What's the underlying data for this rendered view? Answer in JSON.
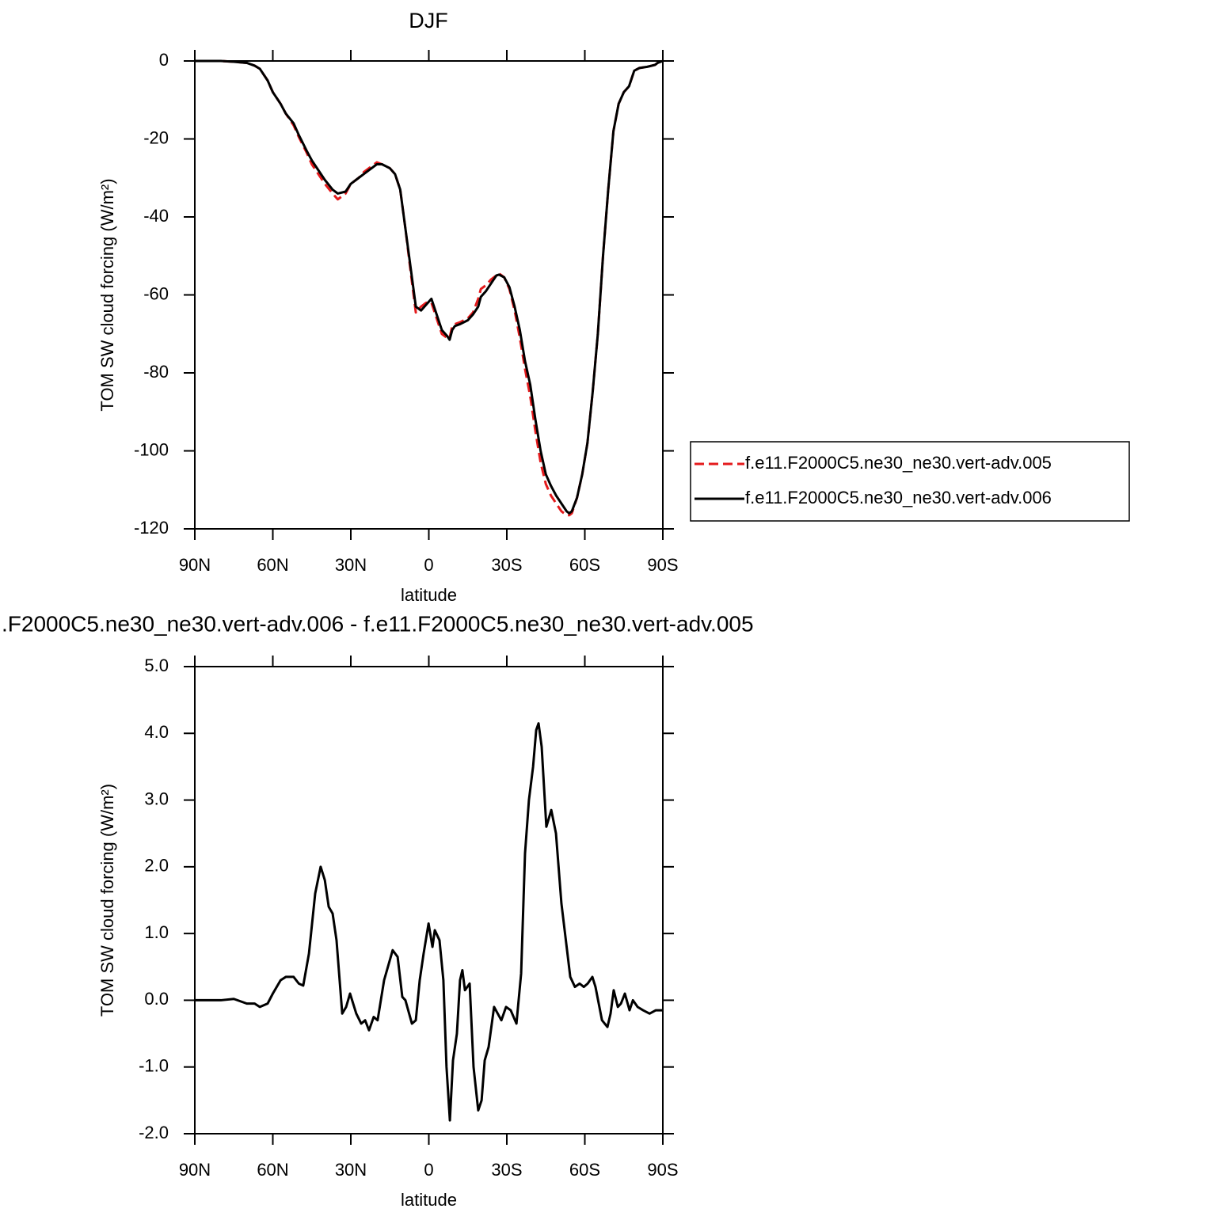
{
  "chart_data": [
    {
      "type": "line",
      "title": "DJF",
      "xlabel": "latitude",
      "ylabel": "TOM SW cloud forcing (W/m²)",
      "x": [
        90,
        80,
        75,
        70,
        67,
        65,
        62,
        60,
        57,
        55,
        52,
        50,
        47,
        45,
        42,
        40,
        37,
        35,
        32,
        30,
        27,
        25,
        22,
        20,
        18,
        15,
        13,
        11,
        9,
        7,
        5,
        3,
        1,
        -1,
        -3,
        -5,
        -7,
        -8,
        -9,
        -10,
        -12,
        -15,
        -17,
        -19,
        -20,
        -22,
        -24,
        -26,
        -27,
        -29,
        -31,
        -33,
        -35,
        -37,
        -39,
        -41,
        -43,
        -45,
        -47,
        -49,
        -51,
        -53,
        -54,
        -55,
        -57,
        -59,
        -61,
        -63,
        -65,
        -67,
        -69,
        -71,
        -73,
        -75,
        -77,
        -79,
        -81,
        -84,
        -87,
        -88,
        -90
      ],
      "series": [
        {
          "name": "f.e11.F2000C5.ne30_ne30.vert-adv.005",
          "color": "#e41a1c",
          "dashed": true,
          "values": [
            0,
            0,
            -0.2,
            -0.5,
            -1.2,
            -2,
            -5,
            -8,
            -11,
            -13.5,
            -16.5,
            -19.5,
            -23.5,
            -26.5,
            -29.5,
            -31.5,
            -34,
            -35.5,
            -34,
            -31.5,
            -30,
            -28.5,
            -27,
            -26,
            -26.5,
            -27.5,
            -29,
            -33,
            -43,
            -54,
            -64.5,
            -63,
            -62,
            -62,
            -66,
            -70,
            -71,
            -71,
            -68,
            -67.5,
            -67,
            -66,
            -64.5,
            -61,
            -58.5,
            -57.5,
            -56,
            -55,
            -54.5,
            -55.5,
            -58.5,
            -64,
            -71,
            -79,
            -86,
            -95,
            -103,
            -108.5,
            -111.5,
            -113.5,
            -115.5,
            -116.5,
            -116.5,
            -116,
            -112,
            -106,
            -98,
            -85,
            -70,
            -50,
            -33,
            -18,
            -11,
            -8,
            -6.5,
            -2.5,
            -1.8,
            -1.5,
            -1,
            -0.5,
            0
          ]
        },
        {
          "name": "f.e11.F2000C5.ne30_ne30.vert-adv.006",
          "color": "#000000",
          "dashed": false,
          "values": [
            0,
            0,
            -0.2,
            -0.5,
            -1.2,
            -2,
            -5,
            -8,
            -11,
            -13.5,
            -16,
            -19,
            -23,
            -25.5,
            -28.5,
            -30.5,
            -33,
            -34,
            -33.5,
            -31.5,
            -30,
            -29,
            -27.5,
            -26.5,
            -26.5,
            -27.5,
            -29,
            -33,
            -43,
            -53,
            -63,
            -64,
            -62.5,
            -61,
            -65,
            -69,
            -70.5,
            -71.5,
            -69,
            -68,
            -67.5,
            -66.5,
            -65,
            -63,
            -60.5,
            -59,
            -57,
            -55,
            -54.8,
            -55.5,
            -58,
            -63,
            -69,
            -77,
            -83,
            -92,
            -100,
            -106,
            -109,
            -111.5,
            -113.5,
            -115.5,
            -116,
            -115.5,
            -112,
            -106,
            -98,
            -85,
            -70,
            -50,
            -33,
            -18,
            -11,
            -8,
            -6.5,
            -2.5,
            -1.8,
            -1.5,
            -1,
            -0.5,
            0
          ]
        }
      ],
      "xlim": [
        90,
        -90
      ],
      "xticks": [
        {
          "value": 90,
          "label": "90N"
        },
        {
          "value": 60,
          "label": "60N"
        },
        {
          "value": 30,
          "label": "30N"
        },
        0,
        {
          "value": -30,
          "label": "30S"
        },
        {
          "value": -60,
          "label": "60S"
        },
        {
          "value": -90,
          "label": "90S"
        }
      ],
      "ylim": [
        -120,
        0
      ],
      "yticks": [
        0,
        -20,
        -40,
        -60,
        -80,
        -100,
        -120
      ],
      "legend": "right"
    },
    {
      "type": "line",
      "title": ".F2000C5.ne30_ne30.vert-adv.006 - f.e11.F2000C5.ne30_ne30.vert-adv.005",
      "xlabel": "latitude",
      "ylabel": "TOM SW cloud forcing (W/m²)",
      "x": [
        90,
        80,
        75,
        70,
        67,
        65,
        62,
        60,
        57,
        55,
        52,
        50,
        48.3,
        46.1,
        43.7,
        41.6,
        40,
        38.5,
        37,
        35.5,
        33.3,
        31.8,
        30.3,
        27.9,
        26,
        24.5,
        23,
        21.2,
        19.7,
        17.2,
        13.9,
        12,
        10.2,
        9,
        6.5,
        5,
        3.5,
        2,
        0.1,
        -1.4,
        -2.3,
        -4.1,
        -5.6,
        -6.8,
        -8.1,
        -9.3,
        -10.8,
        -12,
        -12.9,
        -13.9,
        -15.7,
        -17.2,
        -19,
        -20.3,
        -21.5,
        -23,
        -25.1,
        -27.9,
        -29.7,
        -31.5,
        -33.7,
        -35.5,
        -37,
        -38.5,
        -40.1,
        -41.3,
        -42.2,
        -43.4,
        -45.2,
        -47.1,
        -48.9,
        -51,
        -54.4,
        -56.2,
        -58,
        -59.6,
        -61.1,
        -62.9,
        -64.1,
        -66.6,
        -68.7,
        -69.9,
        -71.1,
        -72.7,
        -73.9,
        -75.4,
        -77.2,
        -78.5,
        -80.3,
        -82.4,
        -84.9,
        -87.3,
        -90
      ],
      "series": [
        {
          "color": "#000000",
          "dashed": false,
          "values": [
            0,
            0,
            0.02,
            -0.05,
            -0.05,
            -0.1,
            -0.05,
            0.1,
            0.3,
            0.35,
            0.35,
            0.25,
            0.22,
            0.7,
            1.6,
            2.0,
            1.8,
            1.4,
            1.3,
            0.9,
            -0.2,
            -0.1,
            0.1,
            -0.2,
            -0.35,
            -0.3,
            -0.45,
            -0.25,
            -0.3,
            0.3,
            0.75,
            0.65,
            0.05,
            0,
            -0.35,
            -0.3,
            0.3,
            0.7,
            1.15,
            0.8,
            1.05,
            0.9,
            0.3,
            -1.0,
            -1.8,
            -0.9,
            -0.5,
            0.3,
            0.45,
            0.15,
            0.25,
            -1.0,
            -1.65,
            -1.5,
            -0.9,
            -0.7,
            -0.1,
            -0.3,
            -0.1,
            -0.15,
            -0.35,
            0.4,
            2.2,
            3.0,
            3.5,
            4.05,
            4.15,
            3.8,
            2.6,
            2.85,
            2.5,
            1.45,
            0.35,
            0.2,
            0.25,
            0.2,
            0.25,
            0.35,
            0.2,
            -0.3,
            -0.4,
            -0.2,
            0.15,
            -0.1,
            -0.05,
            0.1,
            -0.15,
            0,
            -0.1,
            -0.15,
            -0.2,
            -0.15,
            -0.15
          ]
        }
      ],
      "xlim": [
        90,
        -90
      ],
      "xticks": [
        {
          "value": 90,
          "label": "90N"
        },
        {
          "value": 60,
          "label": "60N"
        },
        {
          "value": 30,
          "label": "30N"
        },
        0,
        {
          "value": -30,
          "label": "30S"
        },
        {
          "value": -60,
          "label": "60S"
        },
        {
          "value": -90,
          "label": "90S"
        }
      ],
      "ylim": [
        -2,
        5
      ],
      "yticks": [
        {
          "value": 5,
          "label": "5.0"
        },
        {
          "value": 4,
          "label": "4.0"
        },
        {
          "value": 3,
          "label": "3.0"
        },
        {
          "value": 2,
          "label": "2.0"
        },
        {
          "value": 1,
          "label": "1.0"
        },
        {
          "value": 0,
          "label": "0.0"
        },
        {
          "value": -1,
          "label": "-1.0"
        },
        {
          "value": -2,
          "label": "-2.0"
        }
      ]
    }
  ]
}
